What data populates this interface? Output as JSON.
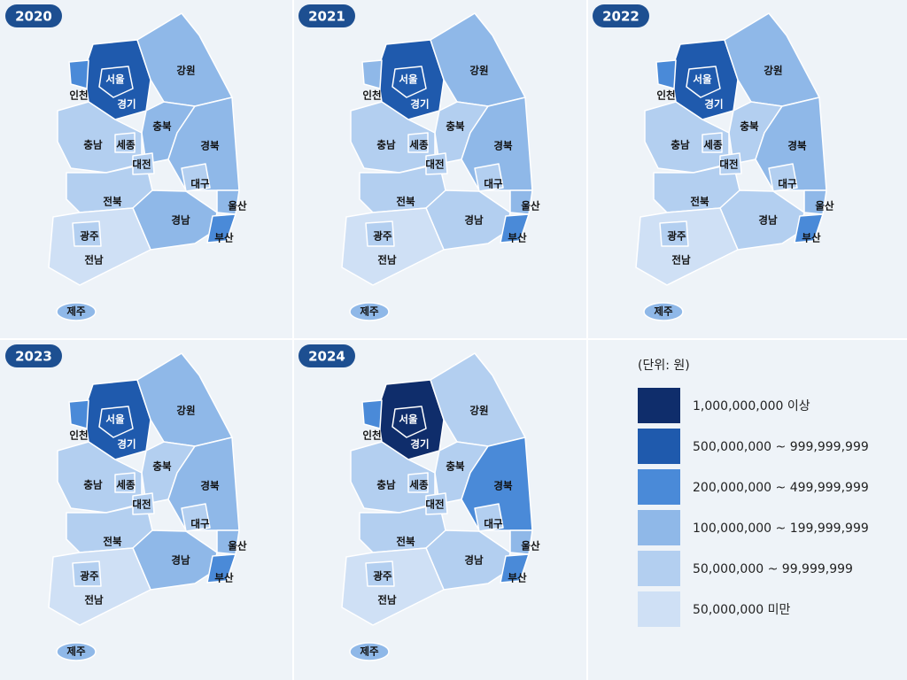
{
  "legend": {
    "title": "(단위: 원)",
    "items": [
      {
        "label": "1,000,000,000 이상",
        "color": "#0f2d6b"
      },
      {
        "label": "500,000,000 ~ 999,999,999",
        "color": "#1f5aad"
      },
      {
        "label": "200,000,000 ~ 499,999,999",
        "color": "#4a8ad8"
      },
      {
        "label": "100,000,000 ~ 199,999,999",
        "color": "#8fb8e8"
      },
      {
        "label": "50,000,000 ~ 99,999,999",
        "color": "#b3cff0"
      },
      {
        "label": "50,000,000 미만",
        "color": "#cfe0f5"
      }
    ]
  },
  "maps": [
    {
      "year": "2020",
      "regions": [
        {
          "name": "서울",
          "class": 1
        },
        {
          "name": "경기",
          "class": 1
        },
        {
          "name": "인천",
          "class": 2
        },
        {
          "name": "강원",
          "class": 3
        },
        {
          "name": "충북",
          "class": 3
        },
        {
          "name": "충남",
          "class": 4
        },
        {
          "name": "세종",
          "class": 4
        },
        {
          "name": "대전",
          "class": 4
        },
        {
          "name": "경북",
          "class": 3
        },
        {
          "name": "대구",
          "class": 4
        },
        {
          "name": "울산",
          "class": 3
        },
        {
          "name": "전북",
          "class": 4
        },
        {
          "name": "경남",
          "class": 3
        },
        {
          "name": "광주",
          "class": 4
        },
        {
          "name": "부산",
          "class": 2
        },
        {
          "name": "전남",
          "class": 5
        },
        {
          "name": "제주",
          "class": 3
        }
      ]
    },
    {
      "year": "2021",
      "regions": [
        {
          "name": "서울",
          "class": 1
        },
        {
          "name": "경기",
          "class": 1
        },
        {
          "name": "인천",
          "class": 3
        },
        {
          "name": "강원",
          "class": 3
        },
        {
          "name": "충북",
          "class": 4
        },
        {
          "name": "충남",
          "class": 4
        },
        {
          "name": "세종",
          "class": 4
        },
        {
          "name": "대전",
          "class": 4
        },
        {
          "name": "경북",
          "class": 3
        },
        {
          "name": "대구",
          "class": 4
        },
        {
          "name": "울산",
          "class": 3
        },
        {
          "name": "전북",
          "class": 4
        },
        {
          "name": "경남",
          "class": 4
        },
        {
          "name": "광주",
          "class": 4
        },
        {
          "name": "부산",
          "class": 2
        },
        {
          "name": "전남",
          "class": 5
        },
        {
          "name": "제주",
          "class": 3
        }
      ]
    },
    {
      "year": "2022",
      "regions": [
        {
          "name": "서울",
          "class": 1
        },
        {
          "name": "경기",
          "class": 1
        },
        {
          "name": "인천",
          "class": 2
        },
        {
          "name": "강원",
          "class": 3
        },
        {
          "name": "충북",
          "class": 4
        },
        {
          "name": "충남",
          "class": 4
        },
        {
          "name": "세종",
          "class": 4
        },
        {
          "name": "대전",
          "class": 4
        },
        {
          "name": "경북",
          "class": 3
        },
        {
          "name": "대구",
          "class": 4
        },
        {
          "name": "울산",
          "class": 3
        },
        {
          "name": "전북",
          "class": 4
        },
        {
          "name": "경남",
          "class": 4
        },
        {
          "name": "광주",
          "class": 4
        },
        {
          "name": "부산",
          "class": 2
        },
        {
          "name": "전남",
          "class": 5
        },
        {
          "name": "제주",
          "class": 3
        }
      ]
    },
    {
      "year": "2023",
      "regions": [
        {
          "name": "서울",
          "class": 1
        },
        {
          "name": "경기",
          "class": 1
        },
        {
          "name": "인천",
          "class": 2
        },
        {
          "name": "강원",
          "class": 3
        },
        {
          "name": "충북",
          "class": 4
        },
        {
          "name": "충남",
          "class": 4
        },
        {
          "name": "세종",
          "class": 4
        },
        {
          "name": "대전",
          "class": 4
        },
        {
          "name": "경북",
          "class": 3
        },
        {
          "name": "대구",
          "class": 4
        },
        {
          "name": "울산",
          "class": 3
        },
        {
          "name": "전북",
          "class": 4
        },
        {
          "name": "경남",
          "class": 3
        },
        {
          "name": "광주",
          "class": 4
        },
        {
          "name": "부산",
          "class": 2
        },
        {
          "name": "전남",
          "class": 5
        },
        {
          "name": "제주",
          "class": 3
        }
      ]
    },
    {
      "year": "2024",
      "regions": [
        {
          "name": "서울",
          "class": 0
        },
        {
          "name": "경기",
          "class": 0
        },
        {
          "name": "인천",
          "class": 2
        },
        {
          "name": "강원",
          "class": 4
        },
        {
          "name": "충북",
          "class": 4
        },
        {
          "name": "충남",
          "class": 4
        },
        {
          "name": "세종",
          "class": 4
        },
        {
          "name": "대전",
          "class": 4
        },
        {
          "name": "경북",
          "class": 2
        },
        {
          "name": "대구",
          "class": 4
        },
        {
          "name": "울산",
          "class": 3
        },
        {
          "name": "전북",
          "class": 4
        },
        {
          "name": "경남",
          "class": 4
        },
        {
          "name": "광주",
          "class": 4
        },
        {
          "name": "부산",
          "class": 2
        },
        {
          "name": "전남",
          "class": 5
        },
        {
          "name": "제주",
          "class": 3
        }
      ]
    }
  ]
}
